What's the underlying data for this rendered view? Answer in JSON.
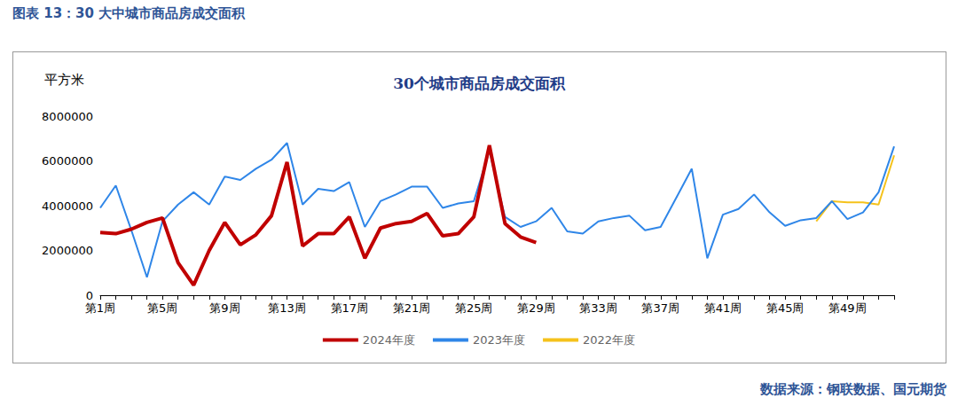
{
  "figure_title": "图表 13：30 大中城市商品房成交面积",
  "source": "数据来源：钢联数据、国元期货",
  "chart_data": {
    "type": "line",
    "title": "30个城市商品房成交面积",
    "y_label": "平方米",
    "categories": [
      "第1周",
      null,
      null,
      null,
      "第5周",
      null,
      null,
      null,
      "第9周",
      null,
      null,
      null,
      "第13周",
      null,
      null,
      null,
      "第17周",
      null,
      null,
      null,
      "第21周",
      null,
      null,
      null,
      "第25周",
      null,
      null,
      null,
      "第29周",
      null,
      null,
      null,
      "第33周",
      null,
      null,
      null,
      "第37周",
      null,
      null,
      null,
      "第41周",
      null,
      null,
      null,
      "第45周",
      null,
      null,
      null,
      "第49周",
      null,
      null,
      null
    ],
    "series": [
      {
        "name": "2024年度",
        "color": "#c00000",
        "values": [
          2800000,
          2750000,
          2950000,
          3250000,
          3450000,
          1450000,
          450000,
          2000000,
          3250000,
          2250000,
          2700000,
          3550000,
          5950000,
          2200000,
          2750000,
          2750000,
          3500000,
          1650000,
          3000000,
          3200000,
          3300000,
          3650000,
          2650000,
          2750000,
          3500000,
          6700000,
          3200000,
          2600000,
          2350000,
          null,
          null,
          null,
          null,
          null,
          null,
          null,
          null,
          null,
          null,
          null,
          null,
          null,
          null,
          null,
          null,
          null,
          null,
          null,
          null,
          null,
          null,
          null
        ]
      },
      {
        "name": "2023年度",
        "color": "#2f86e8",
        "values": [
          3900000,
          4900000,
          2900000,
          800000,
          3300000,
          4050000,
          4600000,
          4050000,
          5300000,
          5150000,
          5650000,
          6050000,
          6800000,
          4050000,
          4750000,
          4650000,
          5050000,
          3050000,
          4200000,
          4500000,
          4850000,
          4850000,
          3900000,
          4100000,
          4200000,
          6450000,
          3500000,
          3050000,
          3300000,
          3900000,
          2850000,
          2750000,
          3300000,
          3450000,
          3550000,
          2900000,
          3050000,
          4350000,
          5650000,
          1650000,
          3600000,
          3850000,
          4500000,
          3700000,
          3100000,
          3350000,
          3450000,
          4200000,
          3400000,
          3700000,
          4600000,
          6650000
        ]
      },
      {
        "name": "2022年度",
        "color": "#f5c21b",
        "values": [
          null,
          null,
          null,
          null,
          null,
          null,
          null,
          null,
          null,
          null,
          null,
          null,
          null,
          null,
          null,
          null,
          null,
          null,
          null,
          null,
          null,
          null,
          null,
          null,
          null,
          null,
          null,
          null,
          null,
          null,
          null,
          null,
          null,
          null,
          null,
          null,
          null,
          null,
          null,
          null,
          null,
          null,
          null,
          null,
          null,
          null,
          3300000,
          4200000,
          4150000,
          4150000,
          4050000,
          6250000
        ]
      }
    ],
    "ylim": [
      0,
      8000000
    ],
    "yticks": [
      0,
      2000000,
      4000000,
      6000000,
      8000000
    ],
    "grid": false,
    "legend": "bottom"
  }
}
